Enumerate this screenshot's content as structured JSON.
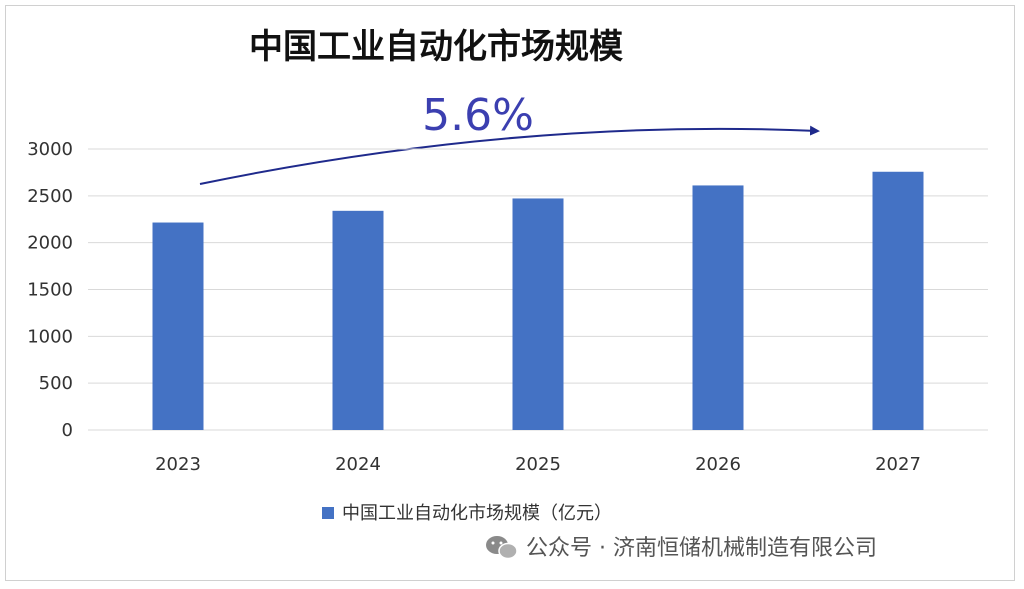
{
  "chart_data": {
    "type": "bar",
    "title": "中国工业自动化市场规模",
    "annotation": "5.6%",
    "categories": [
      "2023",
      "2024",
      "2025",
      "2026",
      "2027"
    ],
    "series": [
      {
        "name": "中国工业自动化市场规模（亿元）",
        "values": [
          2215,
          2340,
          2472,
          2611,
          2757
        ],
        "color": "#4472c4"
      }
    ],
    "ylim": [
      0,
      3000
    ],
    "yticks": [
      0,
      500,
      1000,
      1500,
      2000,
      2500,
      3000
    ],
    "grid": true,
    "legend_position": "bottom",
    "colors": {
      "bar": "#4472c4",
      "arrow": "#1f2a8c",
      "annotation_fill": "#3b3fb0",
      "grid": "#d9d9d9"
    }
  },
  "watermark": {
    "text": "公众号 · 济南恒储机械制造有限公司",
    "icon": "wechat-icon"
  }
}
